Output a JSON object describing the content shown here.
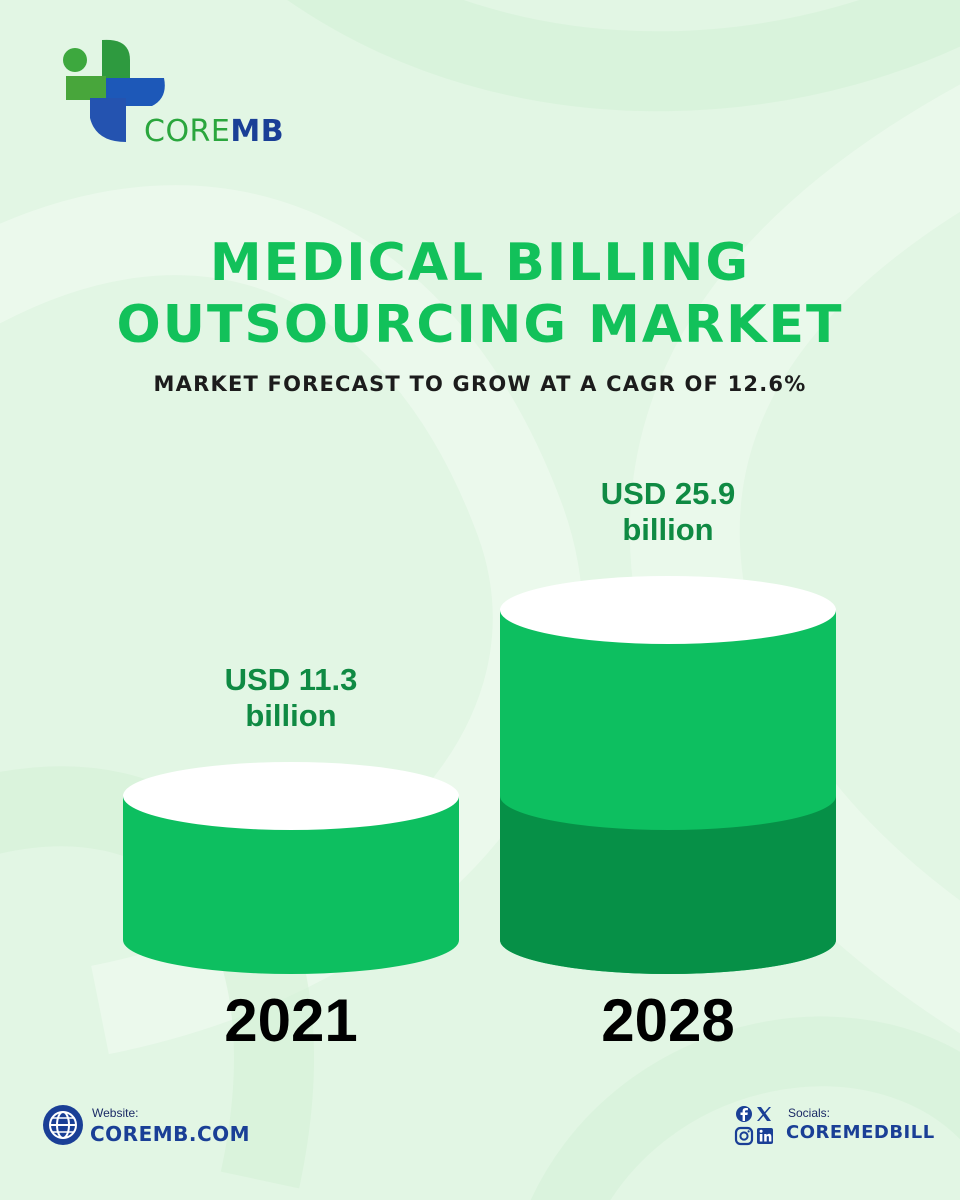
{
  "brand": {
    "name_part1": "CORE",
    "name_part2": "MB",
    "colors": {
      "green": "#2aa63d",
      "blue": "#1a3f96"
    }
  },
  "title": {
    "line1": "MEDICAL BILLING",
    "line2": "OUTSOURCING MARKET",
    "subtitle": "MARKET FORECAST TO GROW AT A CAGR OF 12.6%"
  },
  "chart_data": {
    "type": "bar",
    "categories": [
      "2021",
      "2028"
    ],
    "values": [
      11.3,
      25.9
    ],
    "value_labels": [
      "USD 11.3 billion",
      "USD 25.9 billion"
    ],
    "value_label_lines": [
      [
        "USD 11.3",
        "billion"
      ],
      [
        "USD 25.9",
        "billion"
      ]
    ],
    "title": "MEDICAL BILLING OUTSOURCING MARKET",
    "xlabel": "",
    "ylabel": "",
    "colors": {
      "bar": "#0dbf60",
      "bar_dark": "#069047",
      "top": "#ffffff"
    },
    "grid": false
  },
  "footer": {
    "website_caption": "Website:",
    "website": "COREMB.COM",
    "socials_caption": "Socials:",
    "socials": "COREMEDBILL",
    "icons": [
      "globe-icon",
      "facebook-icon",
      "x-icon",
      "instagram-icon",
      "linkedin-icon"
    ]
  },
  "colors": {
    "background": "#e4f7e6",
    "title_green": "#12c15a",
    "text_dark": "#1c1c1c",
    "footer_blue": "#1a3f96"
  }
}
